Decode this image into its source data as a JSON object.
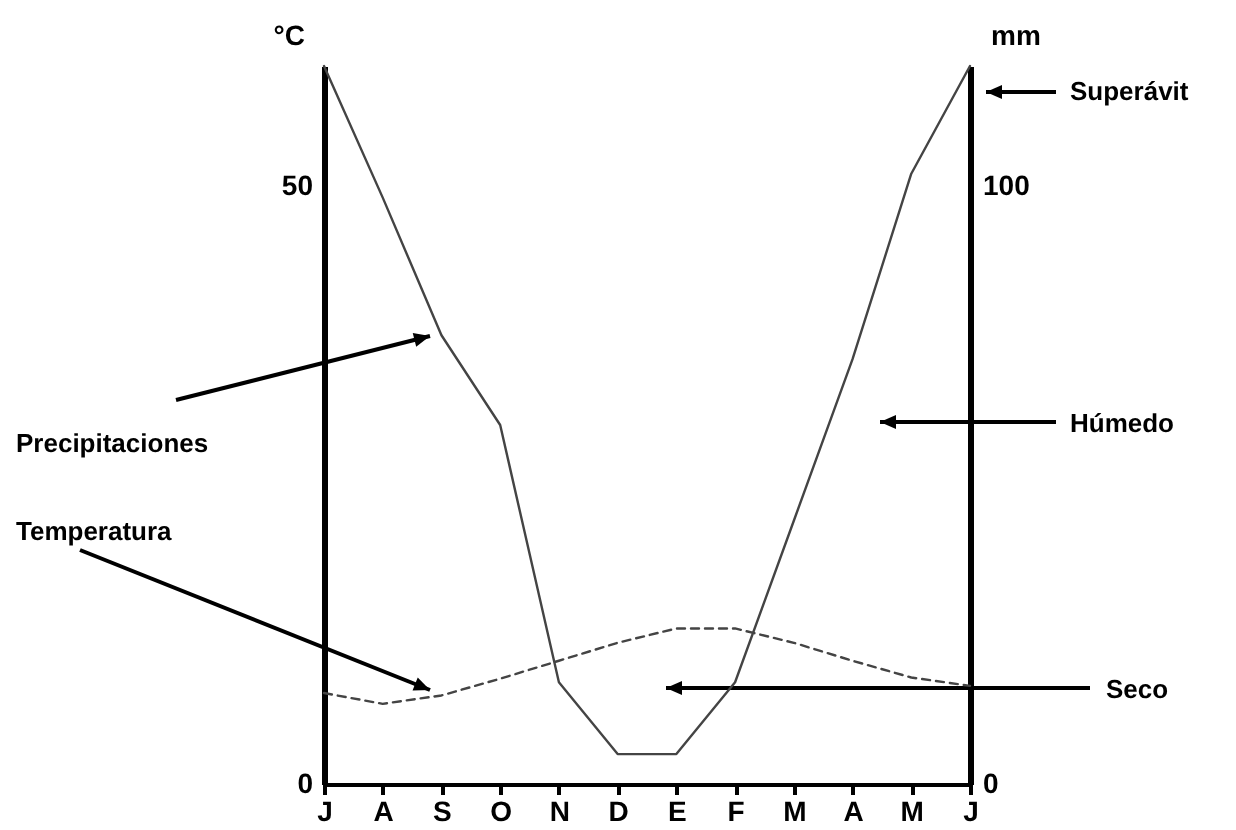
{
  "chart_data": {
    "type": "line",
    "ylabel": "°C",
    "y2label": "mm",
    "categories": [
      "J",
      "A",
      "S",
      "O",
      "N",
      "D",
      "E",
      "F",
      "M",
      "A",
      "M",
      "J"
    ],
    "ylim": [
      0,
      60
    ],
    "yticks": [
      0,
      50
    ],
    "y2lim": [
      0,
      120
    ],
    "y2ticks": [
      0,
      100
    ],
    "grid": false,
    "marker": "none",
    "series": [
      {
        "name": "Precipitaciones",
        "axis": "y2",
        "color": "#444444",
        "line_style": "solid",
        "values": [
          120,
          98,
          75,
          60,
          17,
          5,
          5,
          17,
          44,
          71,
          102,
          120
        ]
      },
      {
        "name": "Temperatura",
        "axis": "y",
        "color": "#444444",
        "line_style": "dashed",
        "values": [
          7.6,
          6.7,
          7.4,
          8.8,
          10.3,
          11.8,
          13.0,
          13.0,
          11.8,
          10.3,
          8.9,
          8.2
        ]
      }
    ],
    "annotations": [
      "Superávit",
      "Húmedo",
      "Seco"
    ]
  }
}
